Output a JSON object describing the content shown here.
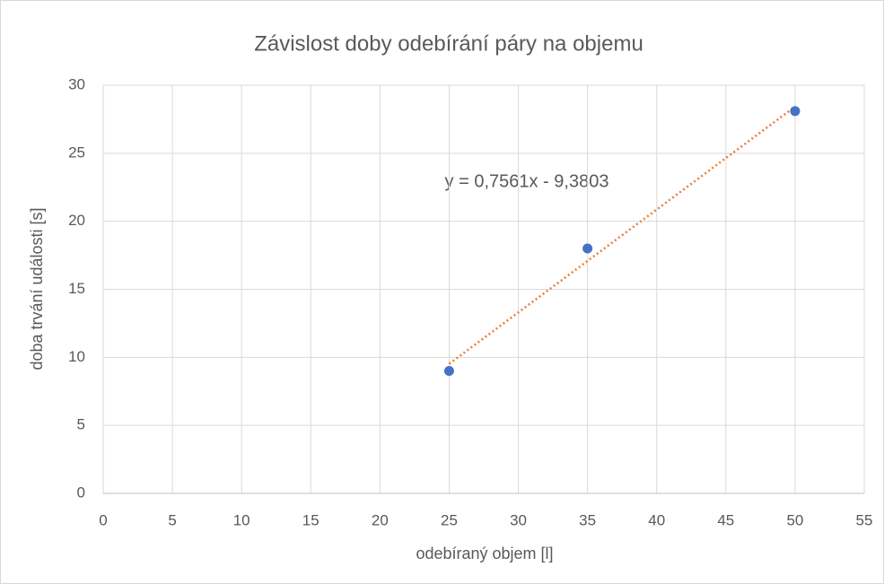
{
  "chart_data": {
    "type": "scatter",
    "title": "Závislost doby odebírání páry na objemu",
    "x_label": "odebíraný objem [l]",
    "y_label": "doba trvání události [s]",
    "x": [
      25,
      35,
      50
    ],
    "series": [
      {
        "color": "#4472c4",
        "values": [
          9,
          18,
          28.1
        ]
      }
    ],
    "trendline": {
      "slope": 0.7561,
      "intercept": -9.3803,
      "color": "#ed7d31",
      "label": "y = 0,7561x - 9,3803"
    },
    "xlim": [
      0,
      55
    ],
    "xticks": [
      0,
      5,
      10,
      15,
      20,
      25,
      30,
      35,
      40,
      45,
      50,
      55
    ],
    "ylim": [
      0,
      30
    ],
    "yticks": [
      0,
      5,
      10,
      15,
      20,
      25,
      30
    ],
    "grid": true
  }
}
